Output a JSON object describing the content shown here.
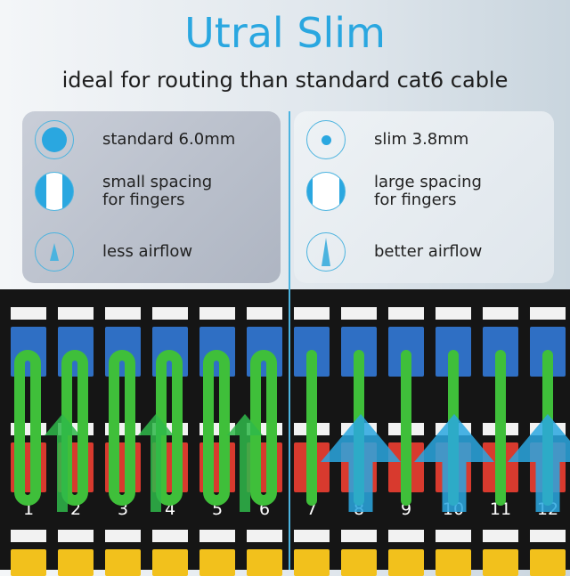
{
  "title": "Utral Slim",
  "subtitle": "ideal for routing than standard cat6 cable",
  "standard": {
    "items": [
      {
        "icon": "large-dot-icon",
        "text": "standard 6.0mm"
      },
      {
        "icon": "narrow-gap-icon",
        "text": "small spacing\nfor fingers"
      },
      {
        "icon": "small-arrow-icon",
        "text": "less airflow"
      }
    ]
  },
  "slim": {
    "items": [
      {
        "icon": "small-dot-icon",
        "text": "slim 3.8mm"
      },
      {
        "icon": "wide-gap-icon",
        "text": "large spacing\nfor fingers"
      },
      {
        "icon": "large-arrow-icon",
        "text": "better airflow"
      }
    ]
  },
  "port_numbers": [
    "1",
    "2",
    "3",
    "4",
    "5",
    "6",
    "7",
    "8",
    "9",
    "10",
    "11",
    "12"
  ],
  "colors": {
    "accent": "#2aa7e0",
    "cable": "#3fbf3a",
    "top_ports": "#2f6fc4",
    "bottom_ports": "#d83a2e",
    "bottom_strip_ports": "#f2c11c"
  }
}
